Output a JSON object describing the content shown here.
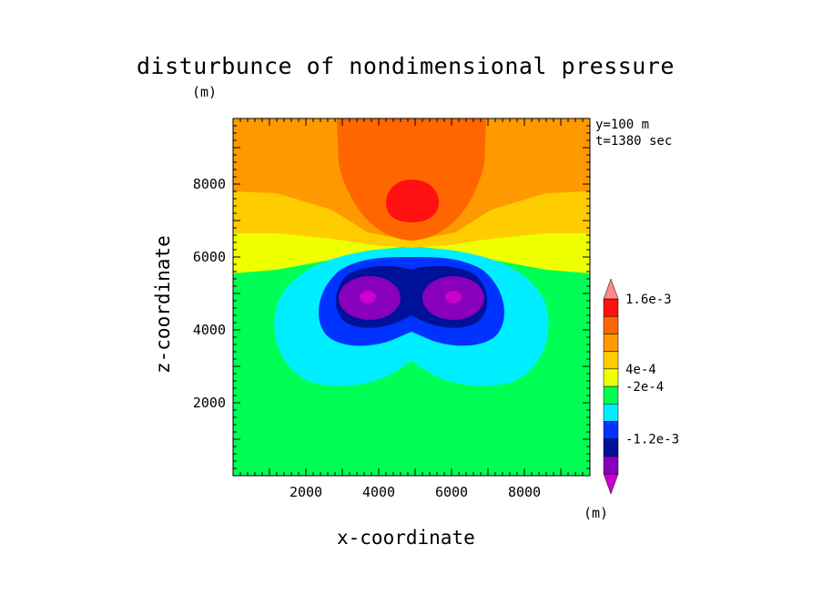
{
  "chart_data": {
    "type": "heatmap",
    "title": "disturbunce of nondimensional pressure",
    "xlabel": "x-coordinate",
    "ylabel": "z-coordinate",
    "y_unit": "(m)",
    "colorbar_unit": "(m)",
    "annotations": [
      "y=100 m",
      "t=1380 sec"
    ],
    "xlim": [
      0,
      9800
    ],
    "ylim": [
      0,
      9800
    ],
    "xticks": [
      2000,
      4000,
      6000,
      8000
    ],
    "yticks": [
      2000,
      4000,
      6000,
      8000
    ],
    "colorbar": {
      "colors": [
        "#cc00cc",
        "#8800bb",
        "#001199",
        "#0033ff",
        "#00eeff",
        "#00ff55",
        "#eeff00",
        "#ffcc00",
        "#ff9900",
        "#ff6600",
        "#ff1111",
        "#ff8888"
      ],
      "tick_labels": [
        "1.6e-3",
        "4e-4",
        "-2e-4",
        "-1.2e-3"
      ]
    },
    "regions": [
      {
        "level": "green",
        "color": "#00ff55"
      },
      {
        "level": "yellow",
        "color": "#eeff00"
      },
      {
        "level": "light-orange",
        "color": "#ffcc00"
      },
      {
        "level": "orange",
        "color": "#ff9900"
      },
      {
        "level": "dark-orange",
        "color": "#ff6600"
      },
      {
        "level": "red",
        "color": "#ff1111"
      },
      {
        "level": "cyan",
        "color": "#00eeff"
      },
      {
        "level": "blue",
        "color": "#0033ff"
      },
      {
        "level": "dark-blue",
        "color": "#001199"
      },
      {
        "level": "purple",
        "color": "#8800bb"
      },
      {
        "level": "magenta",
        "color": "#cc00cc"
      }
    ]
  }
}
